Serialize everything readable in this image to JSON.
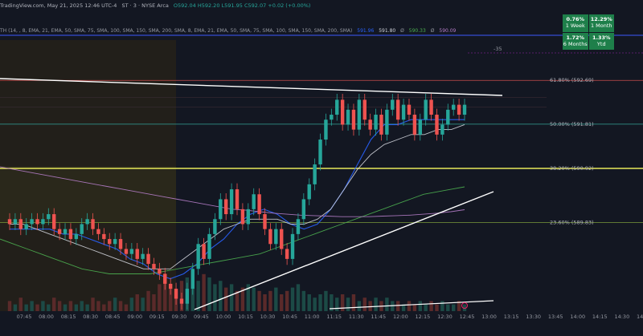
{
  "header": {
    "source": "TradingView.com, May 21, 2025 12:46 UTC-4",
    "symbol_info": "ST · 3 · NYSE Arca",
    "ohlc": "O592.04  H592.20  L591.95  C592.07  +0.02 (+0.00%)"
  },
  "indicator": {
    "label": "TH (14, , 8, EMA, 21, EMA, 50, SMA, 75, SMA, 100, SMA, 150, SMA, 200, SMA, 8, EMA, 21, EMA, 50, SMA, 75, SMA, 100, SMA, 150, SMA, 200, SMA)",
    "values": [
      "591.96",
      "591.80",
      "Ø",
      "590.33",
      "Ø",
      "590.09"
    ]
  },
  "performance": [
    {
      "pct": "0.76%",
      "label": "1 Week"
    },
    {
      "pct": "12.29%",
      "label": "1 Month"
    },
    {
      "pct": "1.72%",
      "label": "6 Months"
    },
    {
      "pct": "1.33%",
      "label": "Ytd"
    }
  ],
  "colors": {
    "background": "#131722",
    "premarket_shade": "#221f1a",
    "up_candle": "#26a69a",
    "down_candle": "#ef5350",
    "ema_fast": "#2962ff",
    "ma_light": "#d1d4dc",
    "ma_green": "#4caf50",
    "ma_purple": "#b47cc7",
    "fib_red": "#c94b4b",
    "fib_teal": "#2e8f86",
    "fib_yellow": "#e8e85a",
    "fib_lime": "#7a9a3a",
    "blue_line": "#3d5afe",
    "performance_green": "#1e7f4a"
  },
  "chart_data": {
    "type": "candlestick",
    "xlabel": "",
    "ylabel": "",
    "x_ticks": [
      "07:45",
      "08:00",
      "08:15",
      "08:30",
      "08:45",
      "09:00",
      "09:15",
      "09:30",
      "09:45",
      "10:00",
      "10:15",
      "10:30",
      "10:45",
      "11:00",
      "11:15",
      "11:30",
      "11:45",
      "12:00",
      "12:15",
      "12:30",
      "12:45",
      "13:00",
      "13:15",
      "13:30",
      "13:45",
      "14:00",
      "14:15",
      "14:30",
      "14:45"
    ],
    "fib_levels": [
      {
        "label": "61.80% (592.69)",
        "value": 592.69
      },
      {
        "label": "50.00% (591.81)",
        "value": 591.81
      },
      {
        "label": "38.20% (590.92)",
        "value": 590.92
      },
      {
        "label": "23.60% (589.83)",
        "value": 589.83
      }
    ],
    "projection_marker": "-35",
    "candles": [
      [
        589.9,
        589.8
      ],
      [
        589.8,
        589.9
      ],
      [
        589.9,
        589.7
      ],
      [
        589.7,
        589.8
      ],
      [
        589.8,
        589.9
      ],
      [
        589.9,
        589.8
      ],
      [
        589.8,
        589.9
      ],
      [
        589.9,
        590.0
      ],
      [
        590.0,
        589.7
      ],
      [
        589.7,
        589.6
      ],
      [
        589.6,
        589.7
      ],
      [
        589.7,
        589.5
      ],
      [
        589.5,
        589.6
      ],
      [
        589.6,
        589.8
      ],
      [
        589.8,
        589.9
      ],
      [
        589.9,
        589.7
      ],
      [
        589.7,
        589.6
      ],
      [
        589.6,
        589.5
      ],
      [
        589.5,
        589.4
      ],
      [
        589.4,
        589.5
      ],
      [
        589.5,
        589.3
      ],
      [
        589.3,
        589.2
      ],
      [
        589.2,
        589.3
      ],
      [
        589.3,
        589.1
      ],
      [
        589.1,
        589.2
      ],
      [
        589.2,
        589.0
      ],
      [
        589.0,
        588.9
      ],
      [
        588.9,
        588.8
      ],
      [
        588.8,
        588.6
      ],
      [
        588.6,
        588.5
      ],
      [
        588.5,
        588.3
      ],
      [
        588.3,
        588.2
      ],
      [
        588.2,
        588.5
      ],
      [
        588.5,
        588.9
      ],
      [
        588.9,
        589.4
      ],
      [
        589.4,
        589.1
      ],
      [
        589.1,
        589.6
      ],
      [
        589.6,
        589.9
      ],
      [
        589.9,
        590.3
      ],
      [
        590.3,
        590.0
      ],
      [
        590.0,
        590.5
      ],
      [
        590.5,
        590.1
      ],
      [
        590.1,
        589.8
      ],
      [
        589.8,
        590.1
      ],
      [
        590.1,
        590.4
      ],
      [
        590.4,
        590.0
      ],
      [
        590.0,
        589.7
      ],
      [
        589.7,
        589.4
      ],
      [
        589.4,
        589.7
      ],
      [
        589.7,
        589.3
      ],
      [
        589.3,
        589.1
      ],
      [
        589.1,
        589.6
      ],
      [
        589.6,
        589.9
      ],
      [
        589.9,
        590.3
      ],
      [
        590.3,
        590.6
      ],
      [
        590.6,
        591.0
      ],
      [
        591.0,
        591.5
      ],
      [
        591.5,
        591.9
      ],
      [
        591.9,
        592.0
      ],
      [
        592.0,
        592.3
      ],
      [
        592.3,
        591.8
      ],
      [
        591.8,
        592.1
      ],
      [
        592.1,
        591.7
      ],
      [
        591.7,
        592.3
      ],
      [
        592.3,
        591.9
      ],
      [
        591.9,
        591.7
      ],
      [
        591.7,
        592.0
      ],
      [
        592.0,
        591.6
      ],
      [
        591.6,
        592.1
      ],
      [
        592.1,
        592.3
      ],
      [
        592.3,
        591.9
      ],
      [
        591.9,
        592.2
      ],
      [
        592.2,
        592.0
      ],
      [
        592.0,
        591.6
      ],
      [
        591.6,
        591.9
      ],
      [
        591.9,
        592.3
      ],
      [
        592.3,
        592.0
      ],
      [
        592.0,
        591.6
      ],
      [
        591.6,
        591.8
      ],
      [
        591.8,
        592.1
      ],
      [
        592.1,
        592.2
      ],
      [
        592.2,
        592.0
      ],
      [
        592.0,
        592.2
      ]
    ],
    "volumes": [
      3,
      2,
      4,
      2,
      3,
      2,
      3,
      2,
      4,
      3,
      2,
      3,
      2,
      3,
      2,
      4,
      3,
      2,
      3,
      4,
      3,
      2,
      4,
      5,
      4,
      6,
      5,
      8,
      9,
      7,
      6,
      9,
      10,
      12,
      9,
      11,
      10,
      8,
      9,
      7,
      8,
      6,
      7,
      8,
      7,
      6,
      5,
      6,
      7,
      5,
      6,
      7,
      8,
      6,
      5,
      4,
      5,
      6,
      5,
      4,
      5,
      4,
      5,
      3,
      4,
      3,
      4,
      3,
      4,
      3,
      3,
      2,
      3,
      2,
      3,
      2,
      3,
      2,
      3,
      2,
      2,
      3,
      2
    ],
    "moving_averages": [
      {
        "color": "ema_fast",
        "values": [
          589.7,
          589.7,
          589.7,
          589.7,
          589.6,
          589.6,
          589.5,
          589.4,
          589.3,
          589.1,
          589.0,
          588.8,
          588.7,
          588.8,
          589.0,
          589.3,
          589.5,
          589.8,
          590.0,
          590.1,
          590.0,
          589.8,
          589.7,
          589.8,
          590.1,
          590.5,
          591.0,
          591.5,
          591.8,
          591.8,
          591.9,
          591.9,
          591.9,
          591.9,
          591.9
        ]
      },
      {
        "color": "ma_light",
        "values": [
          589.8,
          589.8,
          589.7,
          589.6,
          589.5,
          589.4,
          589.3,
          589.2,
          589.1,
          589.0,
          588.9,
          588.9,
          588.9,
          589.1,
          589.3,
          589.5,
          589.7,
          589.8,
          589.9,
          589.9,
          589.9,
          589.8,
          589.8,
          589.9,
          590.1,
          590.5,
          590.9,
          591.2,
          591.4,
          591.5,
          591.6,
          591.6,
          591.7,
          591.7,
          591.8
        ]
      },
      {
        "color": "ma_green",
        "values": [
          589.5,
          589.4,
          589.3,
          589.2,
          589.1,
          589.0,
          588.9,
          588.85,
          588.8,
          588.8,
          588.8,
          588.8,
          588.85,
          588.9,
          588.95,
          589.0,
          589.05,
          589.1,
          589.15,
          589.2,
          589.3,
          589.4,
          589.5,
          589.6,
          589.7,
          589.8,
          589.9,
          590.0,
          590.1,
          590.2,
          590.3,
          590.4,
          590.45,
          590.5,
          590.55
        ]
      },
      {
        "color": "ma_purple",
        "values": [
          590.95,
          590.9,
          590.85,
          590.8,
          590.75,
          590.7,
          590.65,
          590.6,
          590.55,
          590.5,
          590.45,
          590.4,
          590.35,
          590.3,
          590.25,
          590.2,
          590.15,
          590.1,
          590.08,
          590.05,
          590.02,
          590.0,
          589.98,
          589.97,
          589.96,
          589.95,
          589.95,
          589.95,
          589.96,
          589.97,
          589.98,
          590.0,
          590.02,
          590.05,
          590.09
        ]
      }
    ]
  }
}
